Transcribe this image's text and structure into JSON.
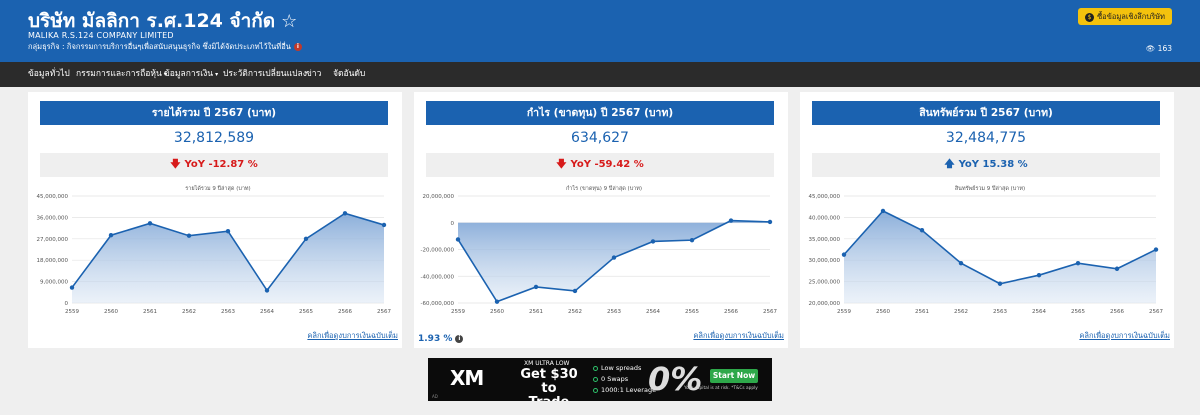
{
  "header": {
    "company_name": "บริษัท มัลลิกา ร.ศ.124 จำกัด",
    "star_icon": "☆",
    "company_name_en": "MALIKA R.S.124 COMPANY LIMITED",
    "business_group": "กลุ่มธุรกิจ : กิจกรรมการบริการอื่นๆเพื่อสนับสนุนธุรกิจ ซึ่งมิได้จัดประเภทไว้ในที่อื่น",
    "info_icon": "i",
    "buy_button_label": "ซื้อข้อมูลเชิงลึกบริษัท",
    "coin_icon": "$",
    "view_icon": "👁",
    "view_count": "163"
  },
  "nav": {
    "items": [
      {
        "label": "ข้อมูลทั่วไป",
        "dropdown": false
      },
      {
        "label": "กรรมการและการถือหุ้น",
        "dropdown": true
      },
      {
        "label": "ข้อมูลการเงิน",
        "dropdown": true
      },
      {
        "label": "ประวัติการเปลี่ยนแปลง",
        "dropdown": false
      },
      {
        "label": "ข่าว",
        "dropdown": false
      },
      {
        "label": "จัดอันดับ",
        "dropdown": false
      }
    ]
  },
  "cards": [
    {
      "title": "รายได้รวม ปี 2567 (บาท)",
      "value": "32,812,589",
      "yoy_label": "YoY -12.87 %",
      "yoy_direction": "down",
      "link_text": "คลิกเพื่อดูงบการเงินฉบับเต็ม"
    },
    {
      "title": "กำไร (ขาดทุน) ปี 2567 (บาท)",
      "value": "634,627",
      "yoy_label": "YoY -59.42 %",
      "yoy_direction": "down",
      "link_text": "คลิกเพื่อดูงบการเงินฉบับเต็ม",
      "margin_label": "1.93 %"
    },
    {
      "title": "สินทรัพย์รวม ปี 2567 (บาท)",
      "value": "32,484,775",
      "yoy_label": "YoY 15.38 %",
      "yoy_direction": "up",
      "link_text": "คลิกเพื่อดูงบการเงินฉบับเต็ม"
    }
  ],
  "colors": {
    "brand_blue": "#1b62b0",
    "down_red": "#d71a1a",
    "nav_dark": "#2b2b2b",
    "button_yellow": "#f4c20d"
  },
  "chart_data": [
    {
      "type": "area",
      "title": "รายได้รวม 9 ปีล่าสุด (บาท)",
      "categories": [
        "2559",
        "2560",
        "2561",
        "2562",
        "2563",
        "2564",
        "2565",
        "2566",
        "2567"
      ],
      "series": [
        {
          "values": [
            6500000,
            28500000,
            33500000,
            28300000,
            30200000,
            5300000,
            27000000,
            37700000,
            32812589
          ]
        }
      ],
      "ylim": [
        0,
        45000000
      ],
      "yticks": [
        0,
        9000000,
        18000000,
        27000000,
        36000000,
        45000000
      ],
      "ytick_labels": [
        "0",
        "9,000,000",
        "18,000,000",
        "27,000,000",
        "36,000,000",
        "45,000,000"
      ],
      "grid": true
    },
    {
      "type": "area",
      "title": "กำไร (ขาดทุน) 9 ปีล่าสุด (บาท)",
      "categories": [
        "2559",
        "2560",
        "2561",
        "2562",
        "2563",
        "2564",
        "2565",
        "2566",
        "2567"
      ],
      "series": [
        {
          "values": [
            -12500000,
            -59000000,
            -48000000,
            -51000000,
            -26000000,
            -14000000,
            -13000000,
            1600000,
            634627
          ]
        }
      ],
      "ylim": [
        -60000000,
        20000000
      ],
      "yticks": [
        -60000000,
        -40000000,
        -20000000,
        0,
        20000000
      ],
      "ytick_labels": [
        "-60,000,000",
        "-40,000,000",
        "-20,000,000",
        "0",
        "20,000,000"
      ],
      "grid": true
    },
    {
      "type": "area",
      "title": "สินทรัพย์รวม 9 ปีล่าสุด (บาท)",
      "categories": [
        "2559",
        "2560",
        "2561",
        "2562",
        "2563",
        "2564",
        "2565",
        "2566",
        "2567"
      ],
      "series": [
        {
          "values": [
            31300000,
            41500000,
            37000000,
            29300000,
            24500000,
            26500000,
            29300000,
            28000000,
            32484775
          ]
        }
      ],
      "ylim": [
        20000000,
        45000000
      ],
      "yticks": [
        20000000,
        25000000,
        30000000,
        35000000,
        40000000,
        45000000
      ],
      "ytick_labels": [
        "20,000,000",
        "25,000,000",
        "30,000,000",
        "35,000,000",
        "40,000,000",
        "45,000,000"
      ],
      "grid": true
    }
  ],
  "ad": {
    "logo": "XM",
    "tagline": "XM ULTRA LOW",
    "headline": "Get $30 to Trade",
    "features": [
      "Low spreads",
      "0 Swaps",
      "1000:1 Leverage"
    ],
    "big_glyph": "0%",
    "cta": "Start Now",
    "risk_note": "Your capital is at risk. *T&Cs apply",
    "small_mark": "AD"
  }
}
